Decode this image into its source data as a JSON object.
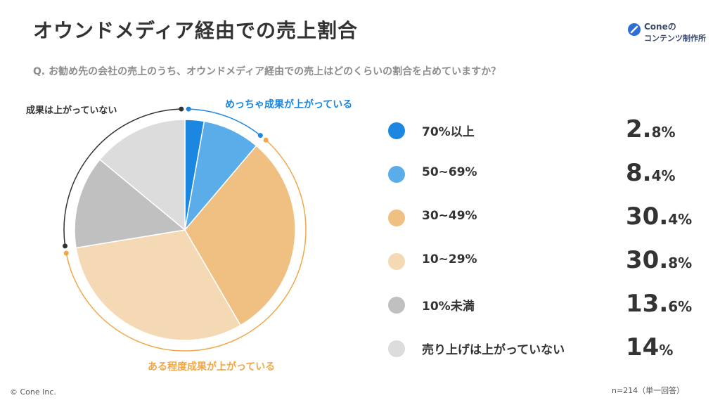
{
  "header": {
    "title": "オウンドメディア経由での売上割合",
    "question": "Q. お勧め先の会社の売上のうち、オウンドメディア経由での売上はどのくらいの割合を占めていますか？"
  },
  "logo": {
    "name": "Cone",
    "suffix": "の",
    "line2": "コンテンツ制作所",
    "icon": "cone-logo-icon",
    "color": "#2e6fd6"
  },
  "annotations": {
    "top": "めっちゃ成果が上がっている",
    "bottom": "ある程度成果が上がっている",
    "left": "成果は上がっていない"
  },
  "chart_data": {
    "type": "pie",
    "categories": [
      "70%以上",
      "50~69%",
      "30~49%",
      "10~29%",
      "10%未満",
      "売り上げは上がっていない"
    ],
    "values": [
      2.8,
      8.4,
      30.4,
      30.8,
      13.6,
      14
    ],
    "value_labels": [
      {
        "int": "2.",
        "dec": "8%"
      },
      {
        "int": "8.",
        "dec": "4%"
      },
      {
        "int": "30.",
        "dec": "4%"
      },
      {
        "int": "30.",
        "dec": "8%"
      },
      {
        "int": "13.",
        "dec": "6%"
      },
      {
        "int": "14",
        "dec": "%"
      }
    ],
    "colors": [
      "#1b87e0",
      "#5aade9",
      "#f0bf82",
      "#f5d9b5",
      "#c0c0c0",
      "#dcdcdc"
    ],
    "groups": [
      {
        "annotation": "top",
        "categories": [
          0,
          1
        ],
        "color": "#1b87e0"
      },
      {
        "annotation": "bottom",
        "categories": [
          2,
          3
        ],
        "color": "#f0a848"
      },
      {
        "annotation": "left",
        "categories": [
          4,
          5
        ],
        "color": "#333333"
      }
    ],
    "legend_position": "right"
  },
  "footer": {
    "copyright": "© Cone Inc.",
    "sample": "n=214（単一回答）"
  }
}
